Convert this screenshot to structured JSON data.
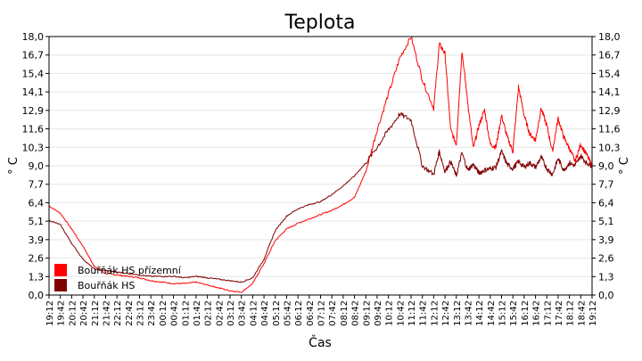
{
  "chart_data": {
    "type": "line",
    "title": "Teplota",
    "xlabel": "Čas",
    "ylabel": "° C",
    "ylim": [
      0,
      18
    ],
    "yticks": [
      "0,0",
      "1,3",
      "2,6",
      "3,9",
      "5,1",
      "6,4",
      "7,7",
      "9,0",
      "10,3",
      "11,6",
      "12,9",
      "14,1",
      "15,4",
      "16,7",
      "18,0"
    ],
    "xticks": [
      "19:12",
      "19:42",
      "20:12",
      "20:42",
      "21:12",
      "21:42",
      "22:12",
      "22:42",
      "23:12",
      "23:42",
      "00:12",
      "00:42",
      "01:12",
      "01:42",
      "02:12",
      "02:42",
      "03:12",
      "03:42",
      "04:12",
      "04:42",
      "05:12",
      "05:42",
      "06:12",
      "06:42",
      "07:12",
      "07:42",
      "08:12",
      "08:42",
      "09:12",
      "09:42",
      "10:12",
      "10:42",
      "11:12",
      "11:42",
      "12:12",
      "12:42",
      "13:12",
      "13:42",
      "14:12",
      "14:42",
      "15:12",
      "15:42",
      "16:12",
      "16:42",
      "17:12",
      "17:42",
      "18:12",
      "18:42",
      "19:12"
    ],
    "grid": true,
    "legend_position": "bottom-left",
    "series": [
      {
        "name": "Bouřňák HS přízemní",
        "color": "#ff0000",
        "x": [
          0,
          1,
          2,
          3,
          4,
          5,
          6,
          7,
          8,
          9,
          10,
          11,
          12,
          13,
          14,
          15,
          16,
          17,
          18,
          19,
          20,
          21,
          22,
          23,
          24,
          25,
          26,
          27,
          28,
          29,
          30,
          31,
          32,
          33,
          34,
          34.5,
          35,
          35.5,
          36,
          36.5,
          37,
          37.5,
          38,
          38.5,
          39,
          39.5,
          40,
          40.5,
          41,
          41.5,
          42,
          42.5,
          43,
          43.5,
          44,
          44.5,
          45,
          45.5,
          46,
          46.5,
          47,
          47.5,
          48
        ],
        "values": [
          6.2,
          5.7,
          4.6,
          3.4,
          2.0,
          1.5,
          1.4,
          1.3,
          1.2,
          1.0,
          0.9,
          0.8,
          0.8,
          0.9,
          0.7,
          0.5,
          0.3,
          0.2,
          0.8,
          2.2,
          3.8,
          4.6,
          5.0,
          5.3,
          5.6,
          5.9,
          6.3,
          6.8,
          8.6,
          11.5,
          14.0,
          16.5,
          18.0,
          15.0,
          13.0,
          17.5,
          16.8,
          11.5,
          10.5,
          17.0,
          13.5,
          10.2,
          11.8,
          12.9,
          10.5,
          10.3,
          12.5,
          11.0,
          10.0,
          14.5,
          12.5,
          11.2,
          10.8,
          13.0,
          11.8,
          10.0,
          12.3,
          11.0,
          10.2,
          9.3,
          10.5,
          9.8,
          9.0
        ]
      },
      {
        "name": "Bouřňák HS",
        "color": "#800000",
        "x": [
          0,
          1,
          2,
          3,
          4,
          5,
          6,
          7,
          8,
          9,
          10,
          11,
          12,
          13,
          14,
          15,
          16,
          17,
          18,
          19,
          20,
          21,
          22,
          23,
          24,
          25,
          26,
          27,
          28,
          29,
          30,
          31,
          32,
          33,
          34,
          34.5,
          35,
          35.5,
          36,
          36.5,
          37,
          37.5,
          38,
          38.5,
          39,
          39.5,
          40,
          40.5,
          41,
          41.5,
          42,
          42.5,
          43,
          43.5,
          44,
          44.5,
          45,
          45.5,
          46,
          46.5,
          47,
          47.5,
          48
        ],
        "values": [
          5.2,
          4.9,
          3.6,
          2.5,
          1.8,
          1.7,
          1.6,
          1.5,
          1.4,
          1.3,
          1.3,
          1.3,
          1.2,
          1.3,
          1.2,
          1.1,
          1.0,
          0.9,
          1.2,
          2.5,
          4.5,
          5.5,
          6.0,
          6.3,
          6.5,
          7.0,
          7.6,
          8.3,
          9.2,
          10.3,
          11.5,
          12.6,
          12.2,
          9.0,
          8.4,
          10.0,
          8.6,
          9.3,
          8.3,
          9.9,
          8.7,
          9.1,
          8.5,
          8.7,
          8.8,
          8.9,
          10.0,
          9.1,
          8.8,
          9.3,
          8.9,
          9.2,
          8.9,
          9.6,
          8.8,
          8.4,
          9.5,
          8.7,
          9.2,
          9.0,
          9.7,
          9.2,
          9.0
        ]
      }
    ]
  }
}
